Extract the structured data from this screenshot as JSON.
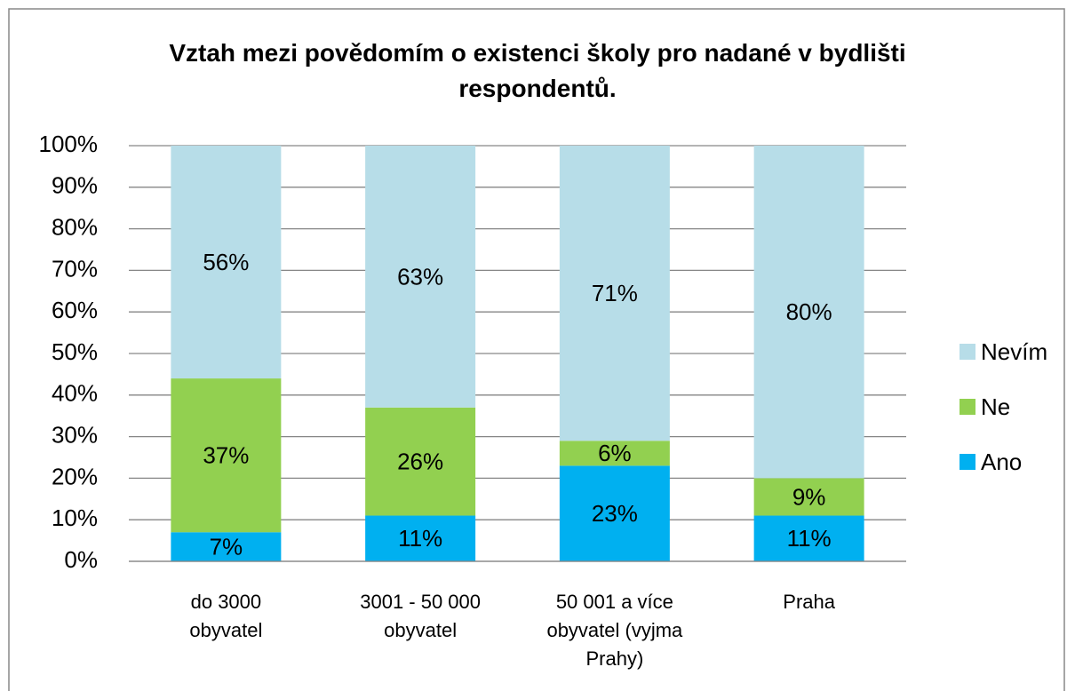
{
  "chart_data": {
    "type": "stacked_bar",
    "title": "Vztah mezi povědomím o existenci školy pro nadané v bydlišti respondentů.",
    "categories": [
      "do 3000 obyvatel",
      "3001 - 50 000 obyvatel",
      "50 001 a více obyvatel (vyjma Prahy)",
      "Praha"
    ],
    "series": [
      {
        "name": "Ano",
        "color": "#00b0f0",
        "values": [
          7,
          11,
          23,
          11
        ],
        "value_labels": [
          "7%",
          "11%",
          "23%",
          "11%"
        ]
      },
      {
        "name": "Ne",
        "color": "#92d050",
        "values": [
          37,
          26,
          6,
          9
        ],
        "value_labels": [
          "37%",
          "26%",
          "6%",
          "9%"
        ]
      },
      {
        "name": "Nevím",
        "color": "#b7dde8",
        "values": [
          56,
          63,
          71,
          80
        ],
        "value_labels": [
          "56%",
          "63%",
          "71%",
          "80%"
        ]
      }
    ],
    "ylim": [
      0,
      100
    ],
    "yticks": [
      {
        "value": 0,
        "label": "0%"
      },
      {
        "value": 10,
        "label": "10%"
      },
      {
        "value": 20,
        "label": "20%"
      },
      {
        "value": 30,
        "label": "30%"
      },
      {
        "value": 40,
        "label": "40%"
      },
      {
        "value": 50,
        "label": "50%"
      },
      {
        "value": 60,
        "label": "60%"
      },
      {
        "value": 70,
        "label": "70%"
      },
      {
        "value": 80,
        "label": "80%"
      },
      {
        "value": 90,
        "label": "90%"
      },
      {
        "value": 100,
        "label": "100%"
      }
    ],
    "grid": true,
    "legend": "right"
  }
}
